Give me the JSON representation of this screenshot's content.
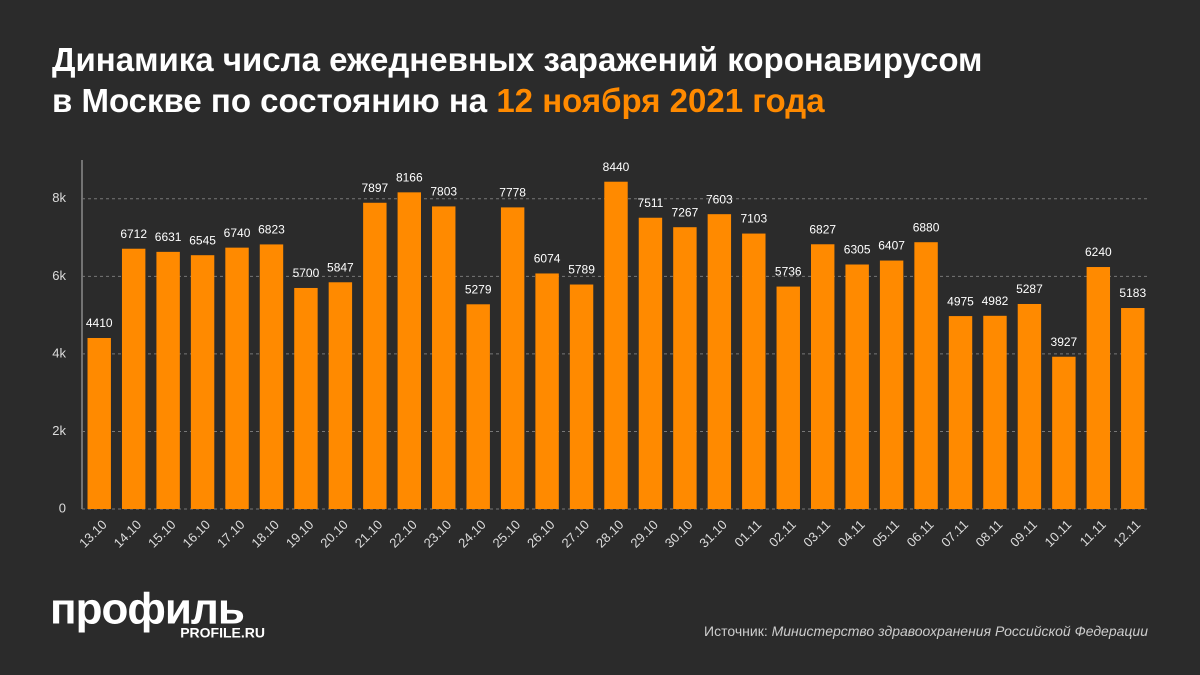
{
  "chart_data": {
    "type": "bar",
    "title": [
      "Динамика числа ежедневных заражений коронавирусом",
      "в Москве по состоянию на"
    ],
    "title_highlight": "12 ноября 2021 года",
    "categories": [
      "13.10",
      "14.10",
      "15.10",
      "16.10",
      "17.10",
      "18.10",
      "19.10",
      "20.10",
      "21.10",
      "22.10",
      "23.10",
      "24.10",
      "25.10",
      "26.10",
      "27.10",
      "28.10",
      "29.10",
      "30.10",
      "31.10",
      "01.11",
      "02.11",
      "03.11",
      "04.11",
      "05.11",
      "06.11",
      "07.11",
      "08.11",
      "09.11",
      "10.11",
      "11.11",
      "12.11"
    ],
    "values": [
      4410,
      6712,
      6631,
      6545,
      6740,
      6823,
      5700,
      5847,
      7897,
      8166,
      7803,
      5279,
      7778,
      6074,
      5789,
      8440,
      7511,
      7267,
      7603,
      7103,
      5736,
      6827,
      6305,
      6407,
      6880,
      4975,
      4982,
      5287,
      3927,
      6240,
      5183
    ],
    "color": "#ff8a00",
    "ylim": [
      0,
      9000
    ],
    "yticks": [
      0,
      {
        "value": 2000,
        "label": "2k"
      },
      {
        "value": 4000,
        "label": "4k"
      },
      {
        "value": 6000,
        "label": "6k"
      },
      {
        "value": 8000,
        "label": "8k"
      }
    ],
    "grid": true,
    "logo": "профиль",
    "logo_url": "PROFILE.RU",
    "source_label": "Источник:",
    "source": "Министерство здравоохранения Российской Федерации"
  }
}
